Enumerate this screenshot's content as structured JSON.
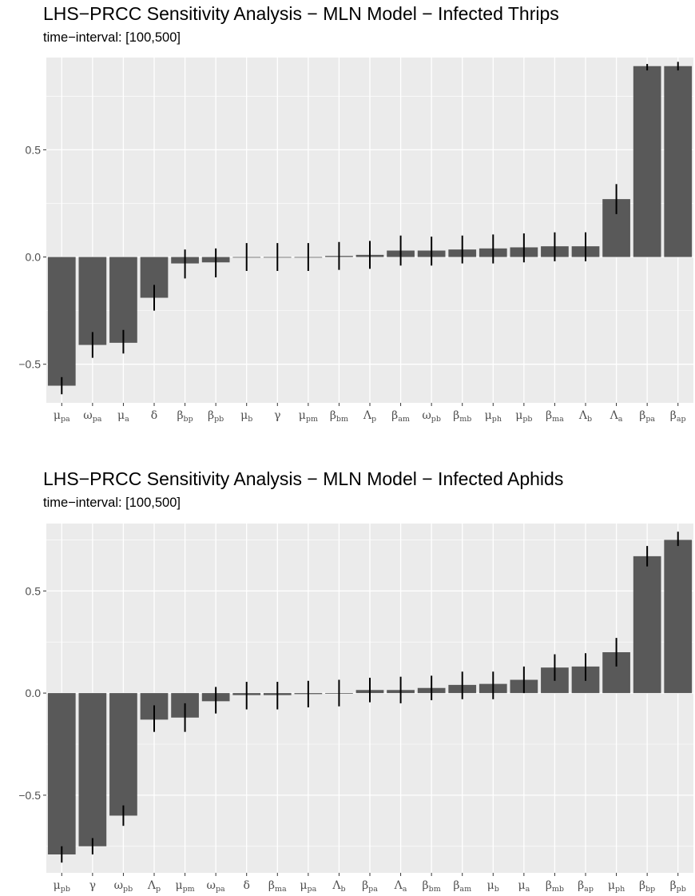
{
  "colors": {
    "panel_bg": "#ebebeb",
    "grid": "#ffffff",
    "bar": "#595959",
    "error_bar": "#000000",
    "tick_text": "#4d4d4d"
  },
  "chart_data": [
    {
      "type": "bar",
      "title": "LHS−PRCC Sensitivity Analysis − MLN Model − Infected Thrips",
      "subtitle": "time−interval: [100,500]",
      "xlabel": "",
      "ylabel": "",
      "ylim": [
        -0.68,
        0.93
      ],
      "yticks": [
        -0.5,
        0.0,
        0.5
      ],
      "ytick_labels": [
        "−0.5",
        "0.0",
        "0.5"
      ],
      "grid": true,
      "legend": "none",
      "categories": [
        {
          "base": "μ",
          "sub": "pa"
        },
        {
          "base": "ω",
          "sub": "pa"
        },
        {
          "base": "μ",
          "sub": "a"
        },
        {
          "base": "δ",
          "sub": ""
        },
        {
          "base": "β",
          "sub": "bp"
        },
        {
          "base": "β",
          "sub": "pb"
        },
        {
          "base": "μ",
          "sub": "b"
        },
        {
          "base": "γ",
          "sub": ""
        },
        {
          "base": "μ",
          "sub": "pm"
        },
        {
          "base": "β",
          "sub": "bm"
        },
        {
          "base": "Λ",
          "sub": "p"
        },
        {
          "base": "β",
          "sub": "am"
        },
        {
          "base": "ω",
          "sub": "pb"
        },
        {
          "base": "β",
          "sub": "mb"
        },
        {
          "base": "μ",
          "sub": "ph"
        },
        {
          "base": "μ",
          "sub": "pb"
        },
        {
          "base": "β",
          "sub": "ma"
        },
        {
          "base": "Λ",
          "sub": "b"
        },
        {
          "base": "Λ",
          "sub": "a"
        },
        {
          "base": "β",
          "sub": "pa"
        },
        {
          "base": "β",
          "sub": "ap"
        }
      ],
      "values": [
        -0.6,
        -0.41,
        -0.4,
        -0.19,
        -0.03,
        -0.025,
        0.0,
        0.0,
        0.0,
        0.005,
        0.01,
        0.03,
        0.03,
        0.035,
        0.04,
        0.045,
        0.05,
        0.05,
        0.27,
        0.89,
        0.89
      ],
      "lower": [
        -0.64,
        -0.47,
        -0.45,
        -0.25,
        -0.1,
        -0.095,
        -0.065,
        -0.065,
        -0.065,
        -0.06,
        -0.055,
        -0.04,
        -0.04,
        -0.03,
        -0.03,
        -0.025,
        -0.02,
        -0.02,
        0.2,
        0.87,
        0.87
      ],
      "upper": [
        -0.56,
        -0.35,
        -0.34,
        -0.13,
        0.035,
        0.04,
        0.065,
        0.065,
        0.065,
        0.07,
        0.075,
        0.1,
        0.095,
        0.1,
        0.105,
        0.11,
        0.115,
        0.115,
        0.34,
        0.9,
        0.91
      ]
    },
    {
      "type": "bar",
      "title": "LHS−PRCC Sensitivity Analysis − MLN Model − Infected Aphids",
      "subtitle": "time−interval: [100,500]",
      "xlabel": "",
      "ylabel": "",
      "ylim": [
        -0.88,
        0.83
      ],
      "yticks": [
        -0.5,
        0.0,
        0.5
      ],
      "ytick_labels": [
        "−0.5",
        "0.0",
        "0.5"
      ],
      "grid": true,
      "legend": "none",
      "categories": [
        {
          "base": "μ",
          "sub": "pb"
        },
        {
          "base": "γ",
          "sub": ""
        },
        {
          "base": "ω",
          "sub": "pb"
        },
        {
          "base": "Λ",
          "sub": "p"
        },
        {
          "base": "μ",
          "sub": "pm"
        },
        {
          "base": "ω",
          "sub": "pa"
        },
        {
          "base": "δ",
          "sub": ""
        },
        {
          "base": "β",
          "sub": "ma"
        },
        {
          "base": "μ",
          "sub": "pa"
        },
        {
          "base": "Λ",
          "sub": "b"
        },
        {
          "base": "β",
          "sub": "pa"
        },
        {
          "base": "Λ",
          "sub": "a"
        },
        {
          "base": "β",
          "sub": "bm"
        },
        {
          "base": "β",
          "sub": "am"
        },
        {
          "base": "μ",
          "sub": "b"
        },
        {
          "base": "μ",
          "sub": "a"
        },
        {
          "base": "β",
          "sub": "mb"
        },
        {
          "base": "β",
          "sub": "ap"
        },
        {
          "base": "μ",
          "sub": "ph"
        },
        {
          "base": "β",
          "sub": "bp"
        },
        {
          "base": "β",
          "sub": "pb"
        }
      ],
      "values": [
        -0.79,
        -0.75,
        -0.6,
        -0.13,
        -0.12,
        -0.04,
        -0.01,
        -0.01,
        -0.005,
        0.0,
        0.015,
        0.015,
        0.025,
        0.04,
        0.045,
        0.065,
        0.125,
        0.13,
        0.2,
        0.67,
        0.75
      ],
      "lower": [
        -0.83,
        -0.79,
        -0.65,
        -0.19,
        -0.19,
        -0.1,
        -0.08,
        -0.08,
        -0.07,
        -0.065,
        -0.045,
        -0.05,
        -0.035,
        -0.03,
        -0.03,
        0.0,
        0.06,
        0.06,
        0.13,
        0.62,
        0.72
      ],
      "upper": [
        -0.75,
        -0.71,
        -0.55,
        -0.06,
        -0.05,
        0.03,
        0.055,
        0.055,
        0.06,
        0.065,
        0.075,
        0.08,
        0.085,
        0.105,
        0.105,
        0.13,
        0.19,
        0.195,
        0.27,
        0.72,
        0.79
      ]
    }
  ]
}
